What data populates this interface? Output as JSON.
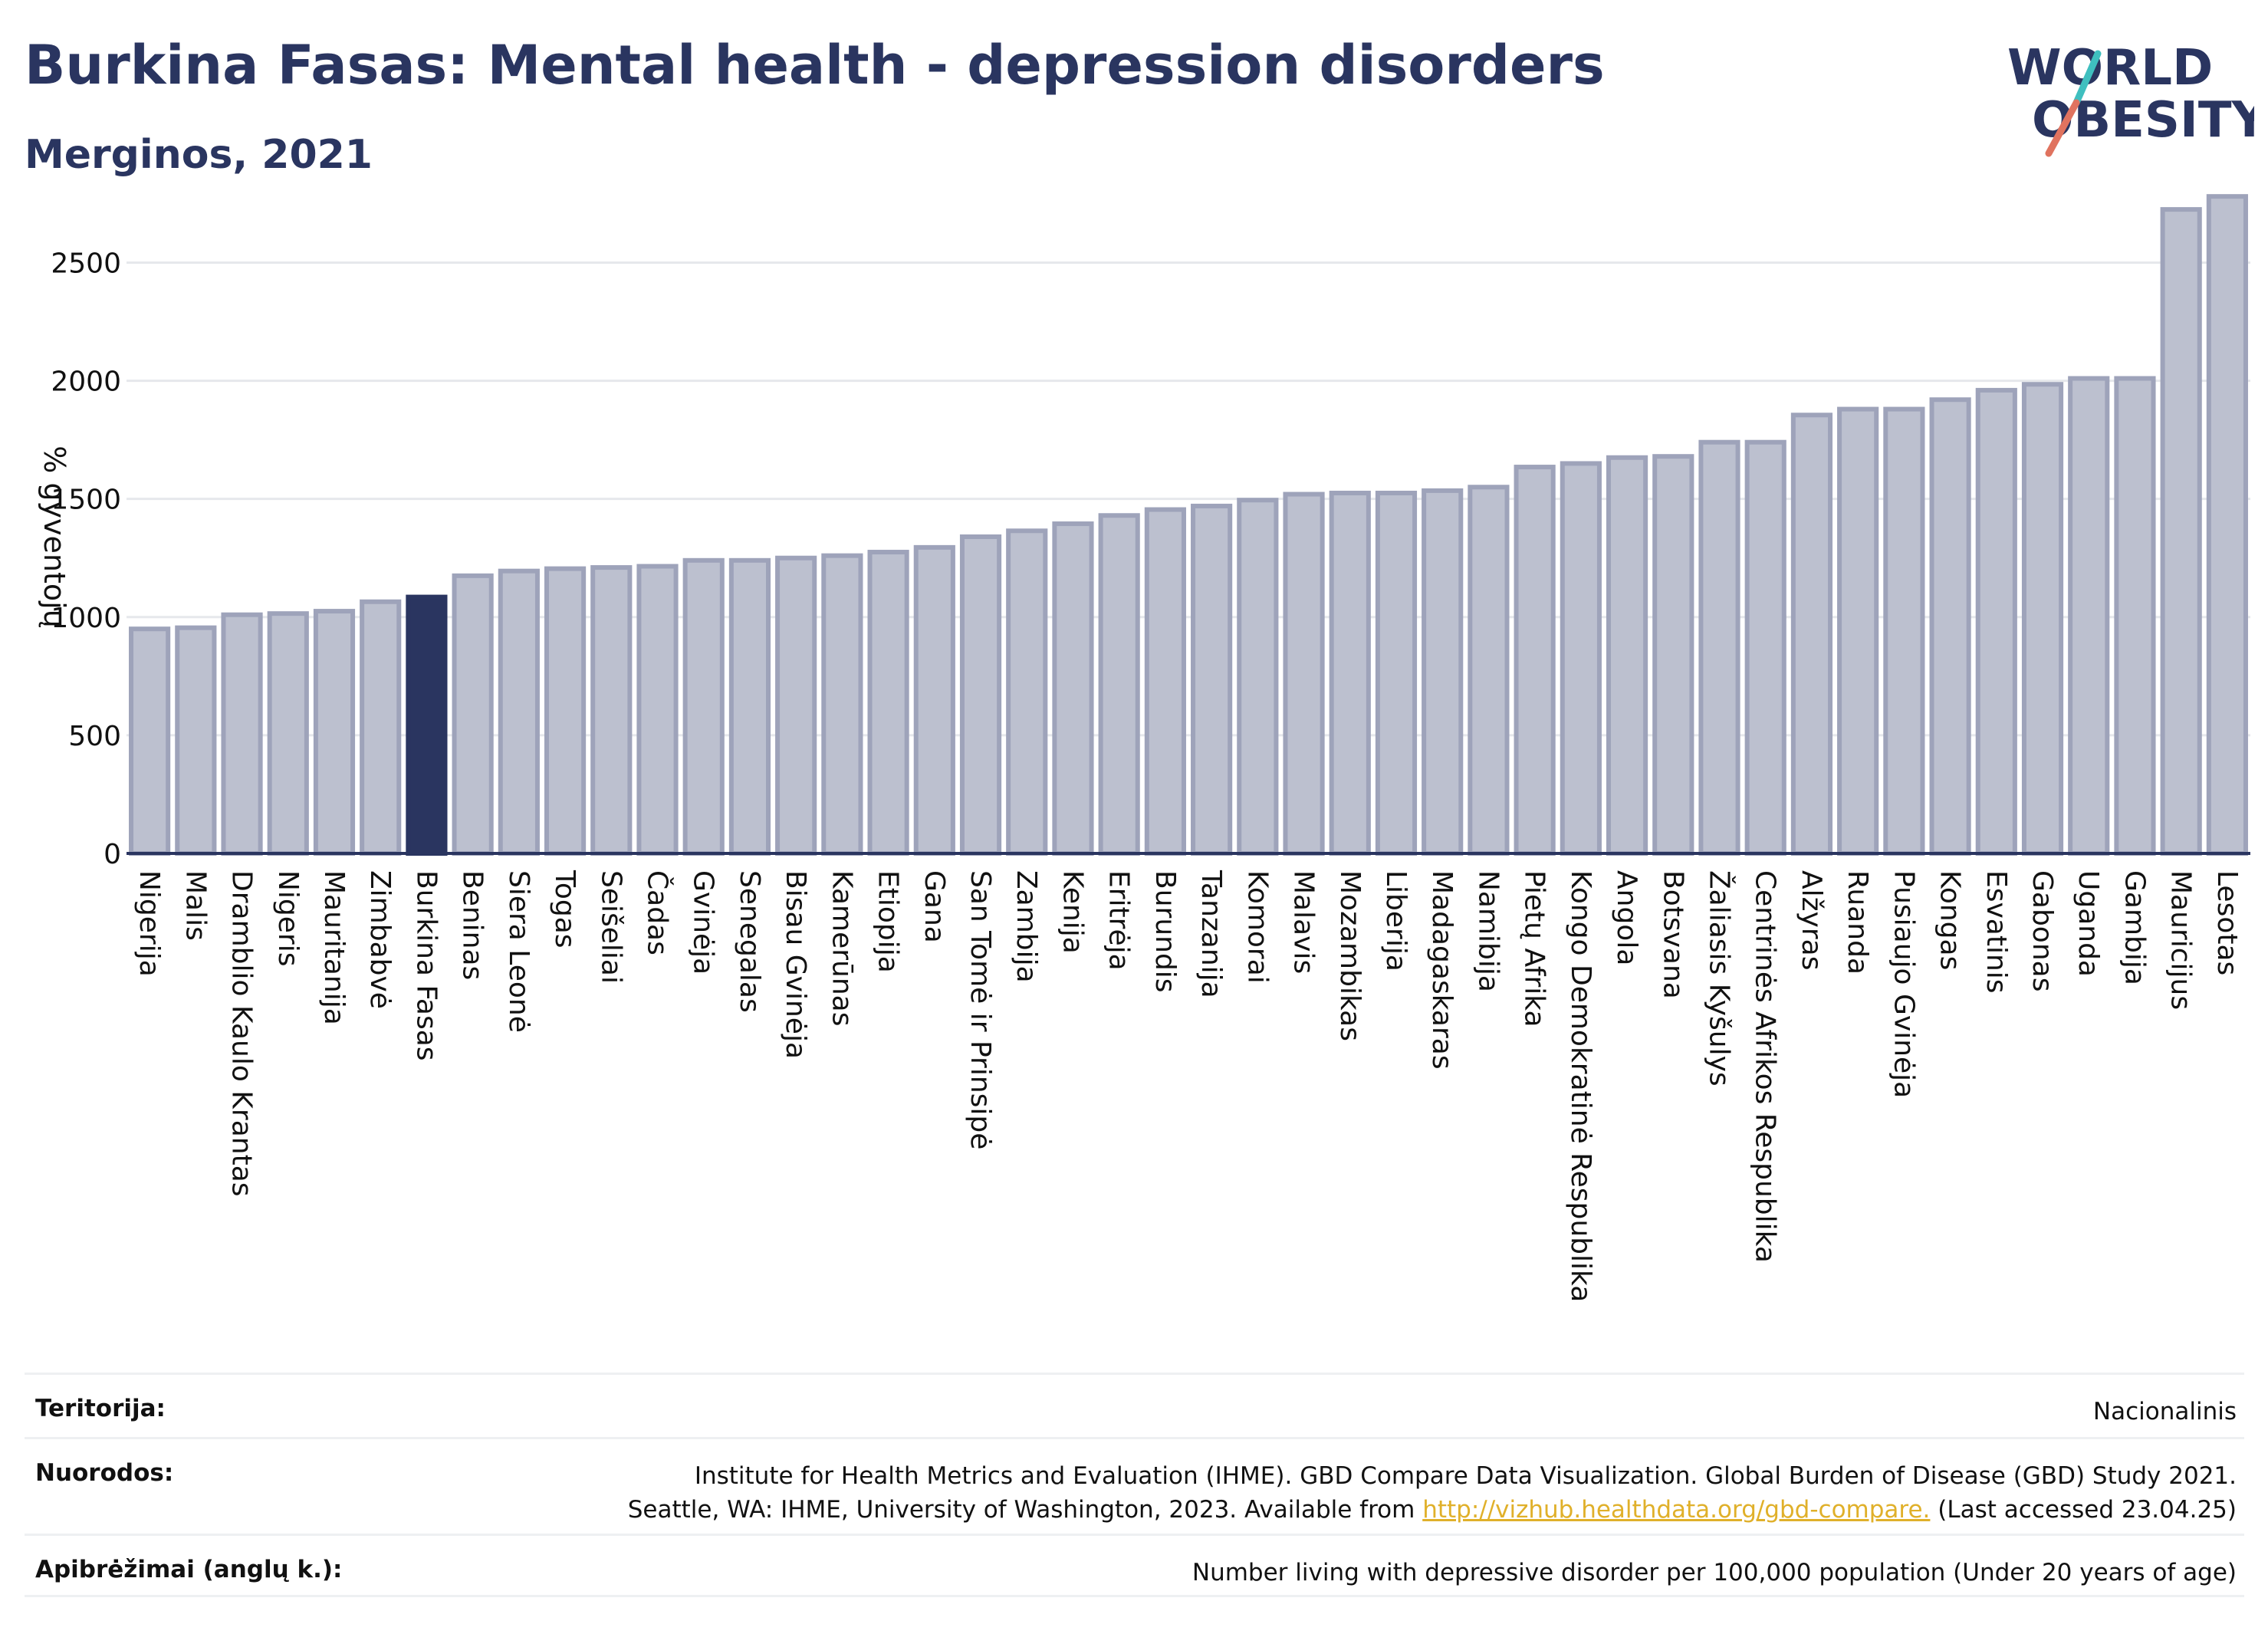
{
  "header": {
    "title": "Burkina Fasas: Mental health - depression disorders",
    "subtitle": "Merginos, 2021"
  },
  "logo": {
    "line1": "WORLD",
    "line2": "OBESITY"
  },
  "chart_data": {
    "type": "bar",
    "ylabel": "% gyventojų",
    "xlabel": "",
    "ylim": [
      0,
      2800
    ],
    "yticks": [
      0,
      500,
      1000,
      1500,
      2000,
      2500
    ],
    "grid": true,
    "highlight": "Burkina Fasas",
    "colors": {
      "bar": "#bcc0cf",
      "bar_edge": "#9ea3ba",
      "highlight": "#2a3560",
      "grid": "#e6e8ec",
      "axis": "#2a3560"
    },
    "categories": [
      "Nigerija",
      "Malis",
      "Dramblio Kaulo Krantas",
      "Nigeris",
      "Mauritanija",
      "Zimbabvė",
      "Burkina Fasas",
      "Beninas",
      "Siera Leonė",
      "Togas",
      "Seišeliai",
      "Čadas",
      "Gvinėja",
      "Senegalas",
      "Bisau Gvinėja",
      "Kamerūnas",
      "Etiopija",
      "Gana",
      "San Tomė ir Prinsipė",
      "Zambija",
      "Kenija",
      "Eritrėja",
      "Burundis",
      "Tanzanija",
      "Komorai",
      "Malavis",
      "Mozambikas",
      "Liberija",
      "Madagaskaras",
      "Namibija",
      "Pietų Afrika",
      "Kongo Demokratinė Respublika",
      "Angola",
      "Botsvana",
      "Žaliasis Kyšulys",
      "Centrinės Afrikos Respublika",
      "Alžyras",
      "Ruanda",
      "Pusiaujo Gvinėja",
      "Kongas",
      "Esvatinis",
      "Gabonas",
      "Uganda",
      "Gambija",
      "Mauricijus",
      "Lesotas"
    ],
    "values": [
      950,
      955,
      1010,
      1015,
      1025,
      1065,
      1085,
      1175,
      1195,
      1205,
      1210,
      1215,
      1240,
      1240,
      1250,
      1260,
      1275,
      1295,
      1340,
      1365,
      1395,
      1430,
      1455,
      1470,
      1495,
      1520,
      1525,
      1525,
      1535,
      1550,
      1635,
      1650,
      1675,
      1680,
      1740,
      1740,
      1855,
      1880,
      1880,
      1920,
      1960,
      1985,
      2010,
      2010,
      2725,
      2780
    ]
  },
  "meta": {
    "territory_label": "Teritorija:",
    "territory_value": "Nacionalinis",
    "refs_label": "Nuorodos:",
    "refs_line1": "Institute for Health Metrics and Evaluation (IHME). GBD Compare Data Visualization. Global Burden of Disease (GBD) Study 2021.",
    "refs_line2_pre": "Seattle, WA: IHME, University of Washington, 2023. Available from ",
    "refs_link": "http://vizhub.healthdata.org/gbd-compare.",
    "refs_line2_post": " (Last accessed 23.04.25)",
    "defs_label": "Apibrėžimai (anglų k.):",
    "defs_value": "Number living with depressive disorder per 100,000 population (Under 20 years of age)"
  }
}
